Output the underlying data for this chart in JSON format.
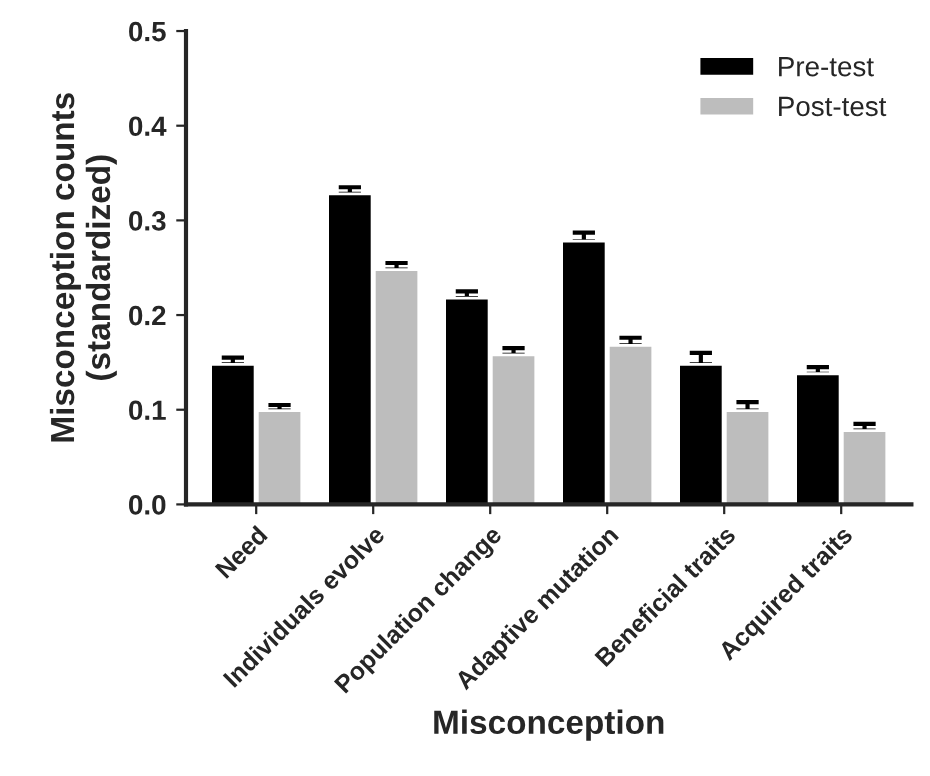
{
  "chart_data": {
    "type": "bar",
    "xlabel": "Misconception",
    "ylabel": "Misconception counts\n(standardized)",
    "categories": [
      "Need",
      "Individuals evolve",
      "Population change",
      "Adaptive mutation",
      "Beneficial traits",
      "Acquired traits"
    ],
    "series": [
      {
        "name": "Pre-test",
        "color": "#000000",
        "values": [
          0.148,
          0.328,
          0.218,
          0.278,
          0.148,
          0.138
        ],
        "errors": [
          [
            0.148,
            0.155
          ],
          [
            0.328,
            0.335
          ],
          [
            0.218,
            0.225
          ],
          [
            0.278,
            0.287
          ],
          [
            0.148,
            0.16
          ],
          [
            0.138,
            0.145
          ]
        ]
      },
      {
        "name": "Post-test",
        "color": "#bdbdbd",
        "values": [
          0.099,
          0.248,
          0.158,
          0.168,
          0.099,
          0.078
        ],
        "errors": [
          [
            0.099,
            0.105
          ],
          [
            0.248,
            0.255
          ],
          [
            0.158,
            0.165
          ],
          [
            0.168,
            0.176
          ],
          [
            0.099,
            0.108
          ],
          [
            0.078,
            0.085
          ]
        ]
      }
    ],
    "ylim": [
      0,
      0.5
    ],
    "yticks": [
      {
        "value": 0,
        "label": "0.0"
      },
      0.1,
      0.2,
      0.3,
      0.4,
      0.5
    ],
    "grid": false,
    "legend": "top right"
  }
}
